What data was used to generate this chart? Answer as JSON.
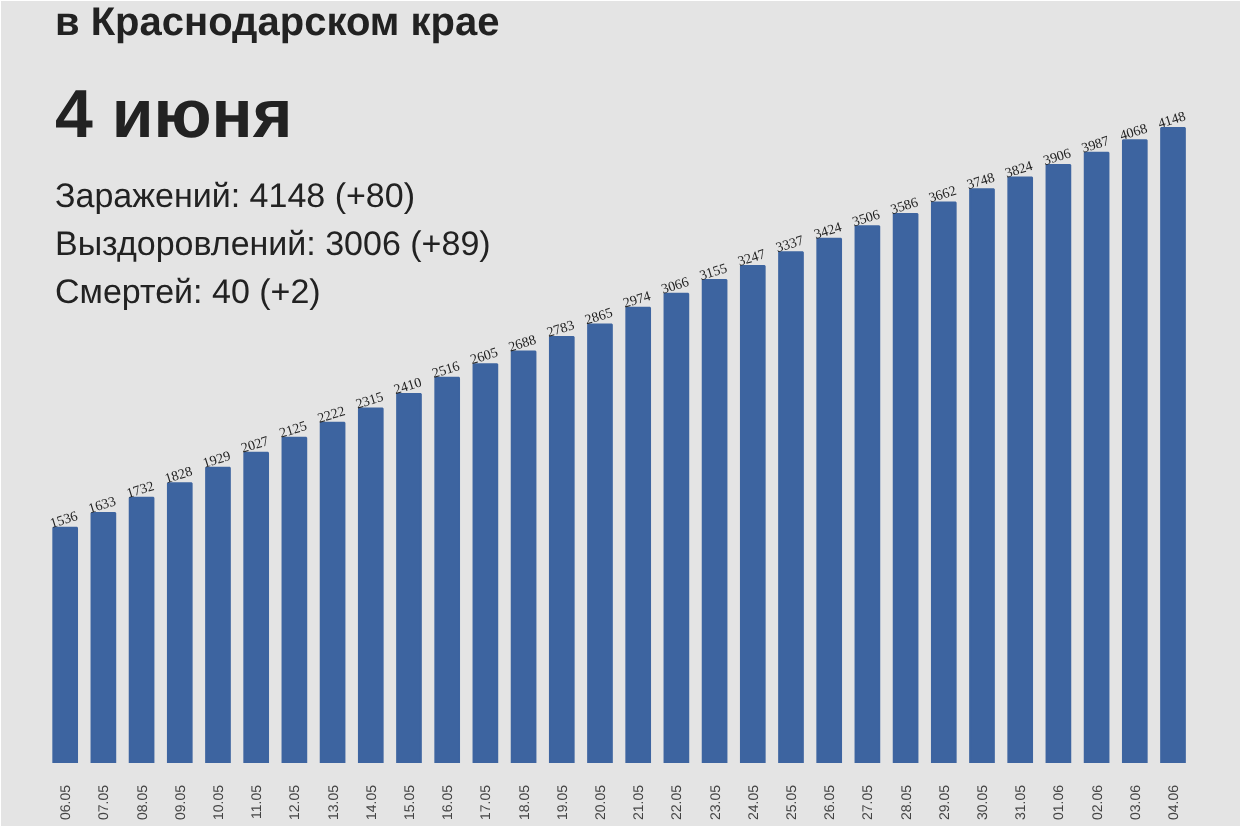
{
  "chart_data": {
    "type": "bar",
    "title": "в Краснодарском крае",
    "subtitle": "4 июня",
    "annotations": [
      "Заражений: 4148 (+80)",
      "Выздоровлений: 3006 (+89)",
      "Смертей: 40 (+2)"
    ],
    "categories": [
      "06.05",
      "07.05",
      "08.05",
      "09.05",
      "10.05",
      "11.05",
      "12.05",
      "13.05",
      "14.05",
      "15.05",
      "16.05",
      "17.05",
      "18.05",
      "19.05",
      "20.05",
      "21.05",
      "22.05",
      "23.05",
      "24.05",
      "25.05",
      "26.05",
      "27.05",
      "28.05",
      "29.05",
      "30.05",
      "31.05",
      "01.06",
      "02.06",
      "03.06",
      "04.06"
    ],
    "values": [
      1536,
      1633,
      1732,
      1828,
      1929,
      2027,
      2125,
      2222,
      2315,
      2410,
      2516,
      2605,
      2688,
      2783,
      2865,
      2974,
      3066,
      3155,
      3247,
      3337,
      3424,
      3506,
      3586,
      3662,
      3748,
      3824,
      3906,
      3987,
      4068,
      4148
    ],
    "color": "#3d64a0",
    "data_labels": true
  }
}
